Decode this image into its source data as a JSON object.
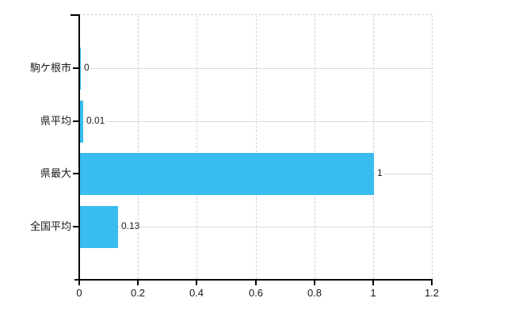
{
  "chart_data": {
    "type": "bar",
    "orientation": "horizontal",
    "title": "",
    "categories": [
      "駒ケ根市",
      "県平均",
      "県最大",
      "全国平均"
    ],
    "values": [
      0,
      0.01,
      1,
      0.13
    ],
    "value_labels": [
      "0",
      "0.01",
      "1",
      "0.13"
    ],
    "x_ticks": [
      0,
      0.2,
      0.4,
      0.6,
      0.8,
      1,
      1.2
    ],
    "x_tick_labels": [
      "0",
      "0.2",
      "0.4",
      "0.6",
      "0.8",
      "1",
      "1.2"
    ],
    "xlim": [
      0,
      1.2
    ],
    "grid": true,
    "legend_position": "none",
    "colors": {
      "bar": "#39bdf0",
      "axis": "#000000",
      "grid_horizontal": "#d7ddd2",
      "grid_vertical": "#d4d0d6",
      "text": "#1a1a1a",
      "background": "#ffffff"
    }
  }
}
